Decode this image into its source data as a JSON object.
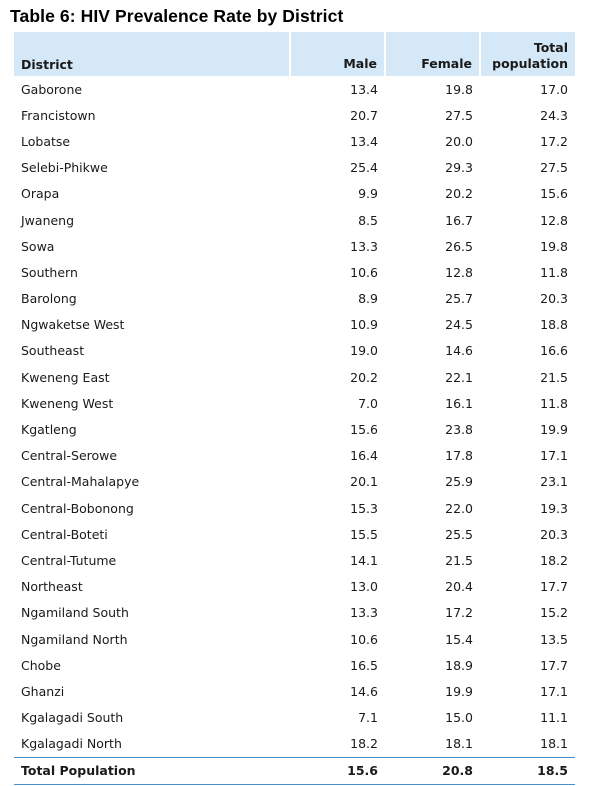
{
  "title": "Table 6: HIV Prevalence Rate by District",
  "accent_color": "#d4e8f7",
  "rule_color": "#4a8fc8",
  "columns": {
    "district": "District",
    "male": "Male",
    "female": "Female",
    "total": "Total population"
  },
  "rows": [
    {
      "district": "Gaborone",
      "male": "13.4",
      "female": "19.8",
      "total": "17.0"
    },
    {
      "district": "Francistown",
      "male": "20.7",
      "female": "27.5",
      "total": "24.3"
    },
    {
      "district": "Lobatse",
      "male": "13.4",
      "female": "20.0",
      "total": "17.2"
    },
    {
      "district": "Selebi-Phikwe",
      "male": "25.4",
      "female": "29.3",
      "total": "27.5"
    },
    {
      "district": "Orapa",
      "male": "9.9",
      "female": "20.2",
      "total": "15.6"
    },
    {
      "district": "Jwaneng",
      "male": "8.5",
      "female": "16.7",
      "total": "12.8"
    },
    {
      "district": "Sowa",
      "male": "13.3",
      "female": "26.5",
      "total": "19.8"
    },
    {
      "district": "Southern",
      "male": "10.6",
      "female": "12.8",
      "total": "11.8"
    },
    {
      "district": "Barolong",
      "male": "8.9",
      "female": "25.7",
      "total": "20.3"
    },
    {
      "district": "Ngwaketse West",
      "male": "10.9",
      "female": "24.5",
      "total": "18.8"
    },
    {
      "district": "Southeast",
      "male": "19.0",
      "female": "14.6",
      "total": "16.6"
    },
    {
      "district": "Kweneng East",
      "male": "20.2",
      "female": "22.1",
      "total": "21.5"
    },
    {
      "district": "Kweneng West",
      "male": "7.0",
      "female": "16.1",
      "total": "11.8"
    },
    {
      "district": "Kgatleng",
      "male": "15.6",
      "female": "23.8",
      "total": "19.9"
    },
    {
      "district": "Central-Serowe",
      "male": "16.4",
      "female": "17.8",
      "total": "17.1"
    },
    {
      "district": "Central-Mahalapye",
      "male": "20.1",
      "female": "25.9",
      "total": "23.1"
    },
    {
      "district": "Central-Bobonong",
      "male": "15.3",
      "female": "22.0",
      "total": "19.3"
    },
    {
      "district": "Central-Boteti",
      "male": "15.5",
      "female": "25.5",
      "total": "20.3"
    },
    {
      "district": "Central-Tutume",
      "male": "14.1",
      "female": "21.5",
      "total": "18.2"
    },
    {
      "district": "Northeast",
      "male": "13.0",
      "female": "20.4",
      "total": "17.7"
    },
    {
      "district": "Ngamiland South",
      "male": "13.3",
      "female": "17.2",
      "total": "15.2"
    },
    {
      "district": "Ngamiland North",
      "male": "10.6",
      "female": "15.4",
      "total": "13.5"
    },
    {
      "district": "Chobe",
      "male": "16.5",
      "female": "18.9",
      "total": "17.7"
    },
    {
      "district": "Ghanzi",
      "male": "14.6",
      "female": "19.9",
      "total": "17.1"
    },
    {
      "district": "Kgalagadi South",
      "male": "7.1",
      "female": "15.0",
      "total": "11.1"
    },
    {
      "district": "Kgalagadi North",
      "male": "18.2",
      "female": "18.1",
      "total": "18.1"
    }
  ],
  "total_row": {
    "district": "Total Population",
    "male": "15.6",
    "female": "20.8",
    "total": "18.5"
  }
}
